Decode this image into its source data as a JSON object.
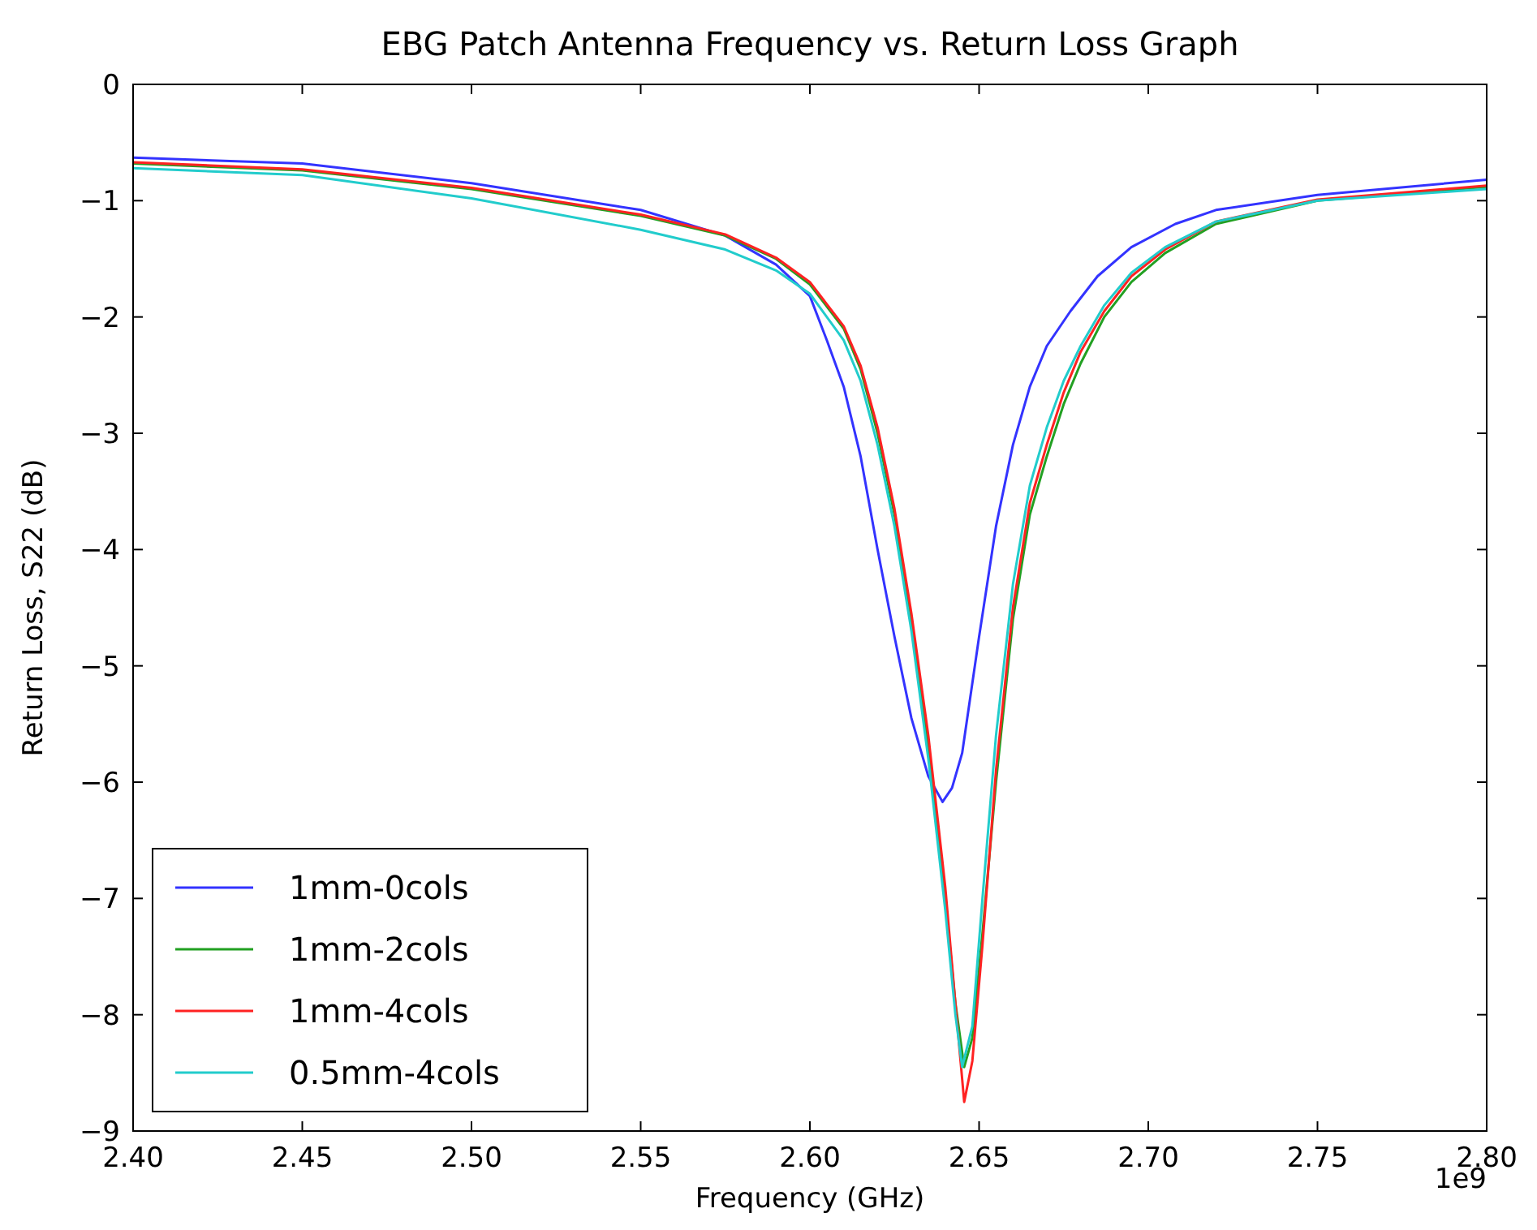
{
  "chart_data": {
    "type": "line",
    "title": "EBG Patch Antenna Frequency vs. Return Loss Graph",
    "xlabel": "Frequency (GHz)",
    "ylabel": "Return Loss, S22 (dB)",
    "annotations": [
      "1e9"
    ],
    "xlim": [
      2.4,
      2.8
    ],
    "xticks": [
      {
        "value": 2.4,
        "label": "2.40"
      },
      {
        "value": 2.45,
        "label": "2.45"
      },
      {
        "value": 2.5,
        "label": "2.50"
      },
      {
        "value": 2.55,
        "label": "2.55"
      },
      {
        "value": 2.6,
        "label": "2.60"
      },
      {
        "value": 2.65,
        "label": "2.65"
      },
      {
        "value": 2.7,
        "label": "2.70"
      },
      {
        "value": 2.75,
        "label": "2.75"
      },
      {
        "value": 2.8,
        "label": "2.80"
      }
    ],
    "ylim": [
      -9,
      0
    ],
    "yticks": [
      -9,
      -8,
      -7,
      -6,
      -5,
      -4,
      -3,
      -2,
      -1,
      0
    ],
    "grid": false,
    "legend": "bottom left",
    "line_style": "solid",
    "marker": "none",
    "series": [
      {
        "name": "1mm-0cols",
        "color": "#3333ff",
        "x": [
          2.4,
          2.45,
          2.5,
          2.55,
          2.575,
          2.59,
          2.6,
          2.605,
          2.61,
          2.615,
          2.62,
          2.625,
          2.63,
          2.635,
          2.6392,
          2.642,
          2.645,
          2.65,
          2.655,
          2.66,
          2.665,
          2.67,
          2.677,
          2.685,
          2.695,
          2.708,
          2.72,
          2.75,
          2.8
        ],
        "values": [
          -0.63,
          -0.68,
          -0.85,
          -1.08,
          -1.3,
          -1.55,
          -1.82,
          -2.2,
          -2.6,
          -3.2,
          -4.0,
          -4.75,
          -5.45,
          -5.95,
          -6.17,
          -6.05,
          -5.75,
          -4.75,
          -3.8,
          -3.1,
          -2.6,
          -2.25,
          -1.95,
          -1.65,
          -1.4,
          -1.2,
          -1.08,
          -0.95,
          -0.82
        ]
      },
      {
        "name": "1mm-2cols",
        "color": "#22a022",
        "x": [
          2.4,
          2.45,
          2.5,
          2.55,
          2.575,
          2.59,
          2.6,
          2.61,
          2.615,
          2.62,
          2.625,
          2.63,
          2.635,
          2.64,
          2.643,
          2.6456,
          2.648,
          2.651,
          2.655,
          2.66,
          2.665,
          2.67,
          2.675,
          2.68,
          2.687,
          2.695,
          2.705,
          2.72,
          2.75,
          2.8
        ],
        "values": [
          -0.68,
          -0.74,
          -0.9,
          -1.13,
          -1.3,
          -1.5,
          -1.72,
          -2.1,
          -2.45,
          -3.0,
          -3.7,
          -4.6,
          -5.7,
          -7.0,
          -7.9,
          -8.45,
          -8.2,
          -7.3,
          -6.0,
          -4.6,
          -3.7,
          -3.2,
          -2.75,
          -2.4,
          -2.0,
          -1.7,
          -1.45,
          -1.2,
          -1.0,
          -0.88
        ]
      },
      {
        "name": "1mm-4cols",
        "color": "#ff2222",
        "x": [
          2.4,
          2.45,
          2.5,
          2.55,
          2.575,
          2.59,
          2.6,
          2.61,
          2.615,
          2.62,
          2.625,
          2.63,
          2.635,
          2.64,
          2.643,
          2.6456,
          2.648,
          2.651,
          2.655,
          2.66,
          2.665,
          2.67,
          2.675,
          2.68,
          2.687,
          2.695,
          2.705,
          2.72,
          2.75,
          2.8
        ],
        "values": [
          -0.67,
          -0.73,
          -0.89,
          -1.12,
          -1.29,
          -1.49,
          -1.7,
          -2.08,
          -2.42,
          -2.95,
          -3.65,
          -4.55,
          -5.6,
          -6.9,
          -7.9,
          -8.75,
          -8.4,
          -7.4,
          -5.9,
          -4.5,
          -3.6,
          -3.1,
          -2.65,
          -2.3,
          -1.95,
          -1.65,
          -1.42,
          -1.18,
          -0.99,
          -0.87
        ]
      },
      {
        "name": "0.5mm-4cols",
        "color": "#22cccc",
        "x": [
          2.4,
          2.45,
          2.5,
          2.55,
          2.575,
          2.59,
          2.6,
          2.61,
          2.615,
          2.62,
          2.625,
          2.63,
          2.635,
          2.64,
          2.643,
          2.645,
          2.648,
          2.651,
          2.655,
          2.66,
          2.665,
          2.67,
          2.675,
          2.68,
          2.687,
          2.695,
          2.705,
          2.72,
          2.75,
          2.8
        ],
        "values": [
          -0.72,
          -0.78,
          -0.98,
          -1.25,
          -1.42,
          -1.6,
          -1.8,
          -2.2,
          -2.55,
          -3.1,
          -3.8,
          -4.7,
          -5.8,
          -7.1,
          -8.0,
          -8.45,
          -8.1,
          -7.0,
          -5.6,
          -4.3,
          -3.45,
          -2.95,
          -2.55,
          -2.25,
          -1.9,
          -1.62,
          -1.4,
          -1.18,
          -1.0,
          -0.9
        ]
      }
    ]
  }
}
